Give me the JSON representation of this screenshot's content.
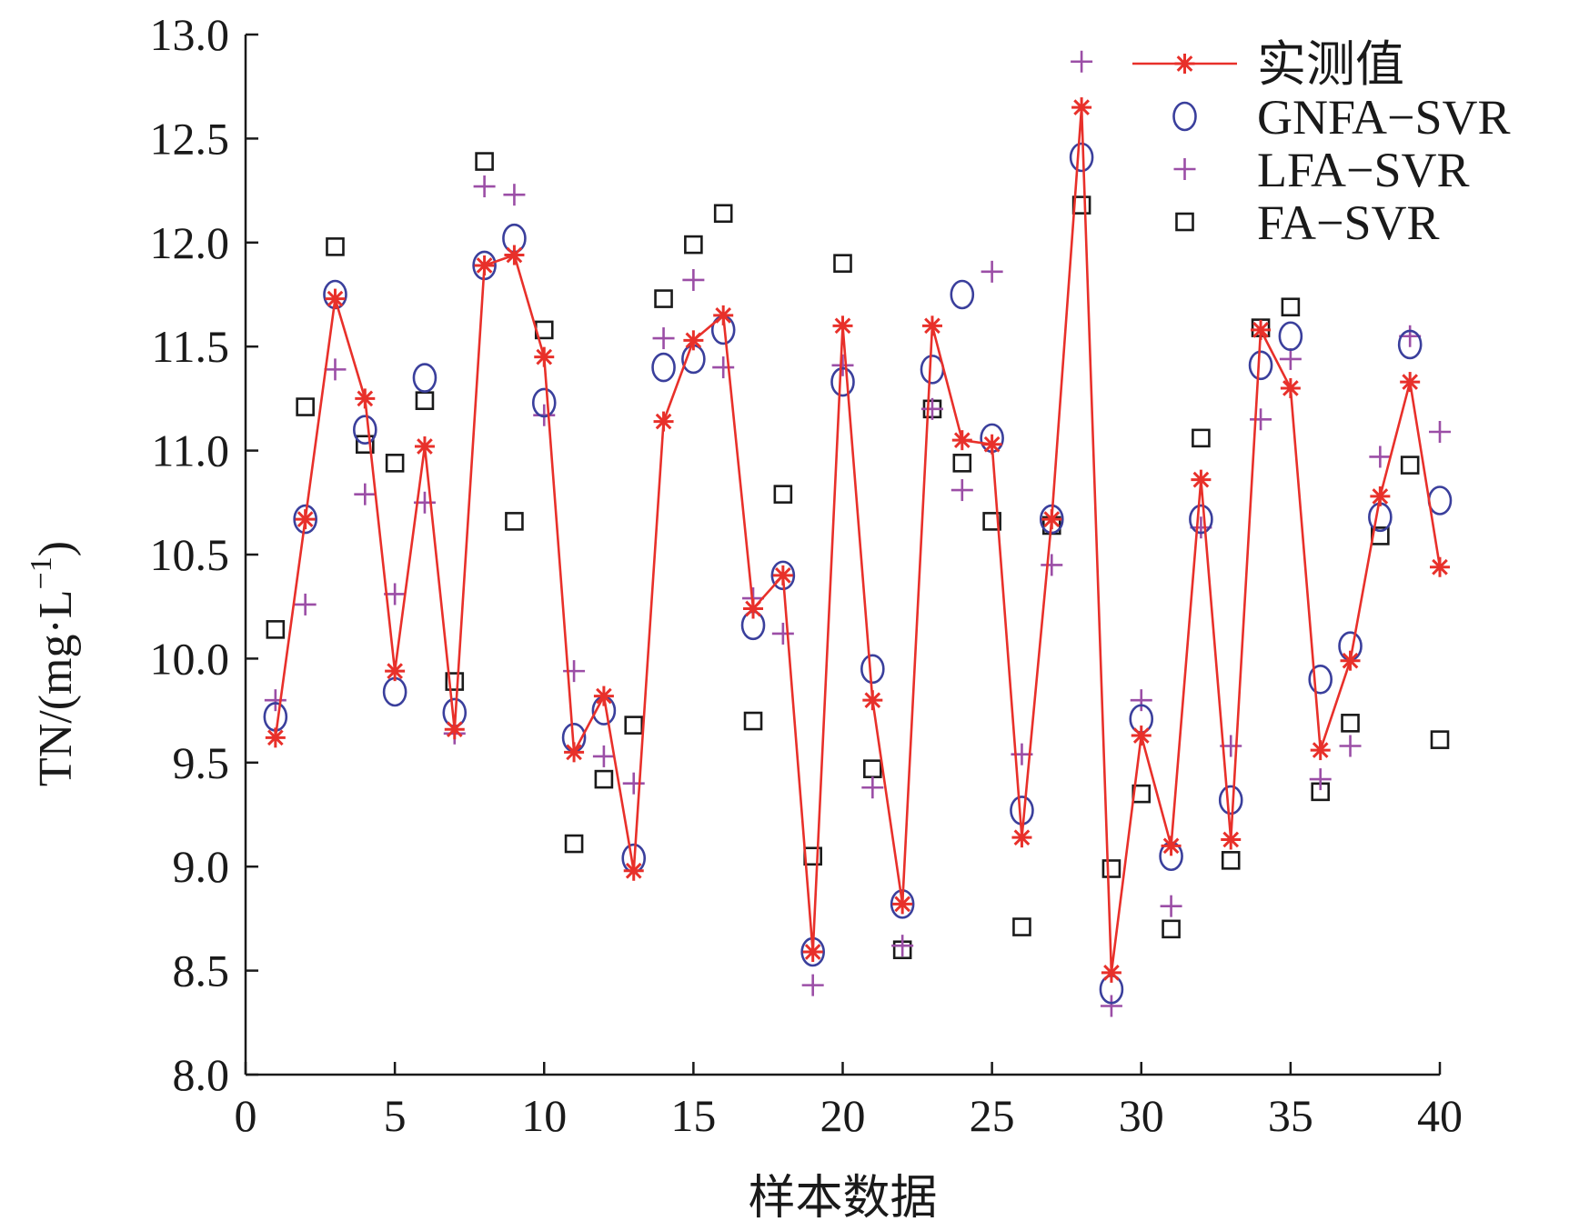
{
  "chart_data": {
    "type": "line",
    "xlabel": "样本数据",
    "ylabel": "TN/(mg·L",
    "ylabel_sup": "−1",
    "ylabel_close": ")",
    "xlim": [
      0,
      40
    ],
    "ylim": [
      8.0,
      13.0
    ],
    "xticks": [
      "0",
      "5",
      "10",
      "15",
      "20",
      "25",
      "30",
      "35",
      "40"
    ],
    "yticks": [
      "8.0",
      "8.5",
      "9.0",
      "9.5",
      "10.0",
      "10.5",
      "11.0",
      "11.5",
      "12.0",
      "12.5",
      "13.0"
    ],
    "grid": false,
    "legend_position": "top-right",
    "x": [
      1,
      2,
      3,
      4,
      5,
      6,
      7,
      8,
      9,
      10,
      11,
      12,
      13,
      14,
      15,
      16,
      17,
      18,
      19,
      20,
      21,
      22,
      23,
      24,
      25,
      26,
      27,
      28,
      29,
      30,
      31,
      32,
      33,
      34,
      35,
      36,
      37,
      38,
      39,
      40
    ],
    "series": [
      {
        "name": "实测值",
        "marker": "asterisk-line",
        "color": "#e8302a",
        "values": [
          9.62,
          10.67,
          11.73,
          11.25,
          9.94,
          11.02,
          9.66,
          11.89,
          11.94,
          11.45,
          9.55,
          9.82,
          8.98,
          11.14,
          11.53,
          11.65,
          10.24,
          10.4,
          8.59,
          11.6,
          9.8,
          8.82,
          11.6,
          11.05,
          11.03,
          9.14,
          10.67,
          12.65,
          8.49,
          9.63,
          9.1,
          10.86,
          9.13,
          11.58,
          11.3,
          9.56,
          9.99,
          10.78,
          11.33,
          10.44
        ]
      },
      {
        "name": "GNFA−SVR",
        "marker": "circle",
        "color": "#3a3f9c",
        "values": [
          9.72,
          10.67,
          11.75,
          11.1,
          9.84,
          11.35,
          9.74,
          11.89,
          12.02,
          11.23,
          9.62,
          9.75,
          9.04,
          11.4,
          11.44,
          11.58,
          10.16,
          10.4,
          8.59,
          11.33,
          9.95,
          8.82,
          11.39,
          11.75,
          11.06,
          9.27,
          10.67,
          12.41,
          8.41,
          9.71,
          9.05,
          10.67,
          9.32,
          11.41,
          11.55,
          9.9,
          10.06,
          10.68,
          11.51,
          10.76
        ]
      },
      {
        "name": "LFA−SVR",
        "marker": "plus",
        "color": "#9b4ea6",
        "values": [
          9.8,
          10.26,
          11.39,
          10.79,
          10.31,
          10.75,
          9.64,
          12.27,
          12.23,
          11.17,
          9.94,
          9.53,
          9.4,
          11.54,
          11.82,
          11.4,
          10.29,
          10.12,
          8.43,
          11.41,
          9.38,
          8.62,
          11.2,
          10.81,
          11.86,
          9.54,
          10.45,
          12.87,
          8.33,
          9.8,
          8.81,
          10.63,
          9.58,
          11.15,
          11.44,
          9.42,
          9.58,
          10.97,
          11.55,
          11.09
        ]
      },
      {
        "name": "FA−SVR",
        "marker": "square",
        "color": "#1a1a1a",
        "values": [
          10.14,
          11.21,
          11.98,
          11.03,
          10.94,
          11.24,
          9.89,
          12.39,
          10.66,
          11.58,
          9.11,
          9.42,
          9.68,
          11.73,
          11.99,
          12.14,
          9.7,
          10.79,
          9.05,
          11.9,
          9.47,
          8.6,
          11.2,
          10.94,
          10.66,
          8.71,
          10.64,
          12.18,
          8.99,
          9.35,
          8.7,
          11.06,
          9.03,
          11.59,
          11.69,
          9.36,
          9.69,
          10.59,
          10.93,
          9.61
        ]
      }
    ]
  }
}
